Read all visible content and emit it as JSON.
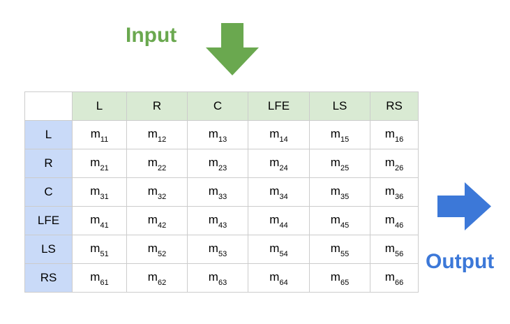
{
  "labels": {
    "input": "Input",
    "output": "Output"
  },
  "colors": {
    "input_green": "#6aa84f",
    "output_blue": "#3c78d8",
    "header_green": "#d9ead3",
    "header_blue": "#c9daf8",
    "border": "#cccccc"
  },
  "icons": {
    "input_arrow": "arrow-down-icon",
    "output_arrow": "arrow-right-icon"
  },
  "matrix": {
    "columns": [
      "L",
      "R",
      "C",
      "LFE",
      "LS",
      "RS"
    ],
    "rows": [
      {
        "label": "L",
        "cells": [
          {
            "base": "m",
            "sub": "11"
          },
          {
            "base": "m",
            "sub": "12"
          },
          {
            "base": "m",
            "sub": "13"
          },
          {
            "base": "m",
            "sub": "14"
          },
          {
            "base": "m",
            "sub": "15"
          },
          {
            "base": "m",
            "sub": "16"
          }
        ]
      },
      {
        "label": "R",
        "cells": [
          {
            "base": "m",
            "sub": "21"
          },
          {
            "base": "m",
            "sub": "22"
          },
          {
            "base": "m",
            "sub": "23"
          },
          {
            "base": "m",
            "sub": "24"
          },
          {
            "base": "m",
            "sub": "25"
          },
          {
            "base": "m",
            "sub": "26"
          }
        ]
      },
      {
        "label": "C",
        "cells": [
          {
            "base": "m",
            "sub": "31"
          },
          {
            "base": "m",
            "sub": "32"
          },
          {
            "base": "m",
            "sub": "33"
          },
          {
            "base": "m",
            "sub": "34"
          },
          {
            "base": "m",
            "sub": "35"
          },
          {
            "base": "m",
            "sub": "36"
          }
        ]
      },
      {
        "label": "LFE",
        "cells": [
          {
            "base": "m",
            "sub": "41"
          },
          {
            "base": "m",
            "sub": "42"
          },
          {
            "base": "m",
            "sub": "43"
          },
          {
            "base": "m",
            "sub": "44"
          },
          {
            "base": "m",
            "sub": "45"
          },
          {
            "base": "m",
            "sub": "46"
          }
        ]
      },
      {
        "label": "LS",
        "cells": [
          {
            "base": "m",
            "sub": "51"
          },
          {
            "base": "m",
            "sub": "52"
          },
          {
            "base": "m",
            "sub": "53"
          },
          {
            "base": "m",
            "sub": "54"
          },
          {
            "base": "m",
            "sub": "55"
          },
          {
            "base": "m",
            "sub": "56"
          }
        ]
      },
      {
        "label": "RS",
        "cells": [
          {
            "base": "m",
            "sub": "61"
          },
          {
            "base": "m",
            "sub": "62"
          },
          {
            "base": "m",
            "sub": "63"
          },
          {
            "base": "m",
            "sub": "64"
          },
          {
            "base": "m",
            "sub": "65"
          },
          {
            "base": "m",
            "sub": "66"
          }
        ]
      }
    ]
  }
}
